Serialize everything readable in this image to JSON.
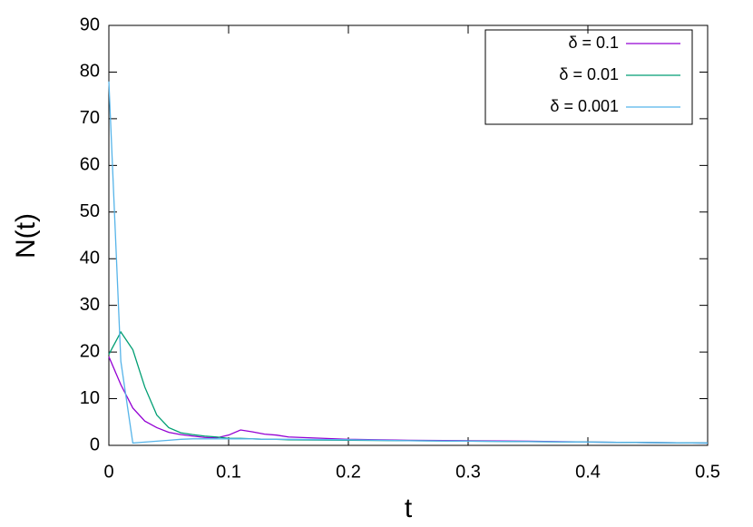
{
  "chart_data": {
    "type": "line",
    "x_label": "t",
    "y_label": "N(t)",
    "x": [
      0,
      0.01,
      0.02,
      0.03,
      0.04,
      0.05,
      0.06,
      0.07,
      0.08,
      0.09,
      0.1,
      0.11,
      0.12,
      0.13,
      0.14,
      0.15,
      0.2,
      0.25,
      0.3,
      0.35,
      0.4,
      0.45,
      0.5
    ],
    "series": [
      {
        "name": "δ = 0.1",
        "color": "#9400d3",
        "values": [
          19,
          13,
          8,
          5.2,
          3.8,
          2.8,
          2.3,
          2,
          1.7,
          1.6,
          2.2,
          3.3,
          2.9,
          2.4,
          2.2,
          1.8,
          1.3,
          1.1,
          1.0,
          0.9,
          0.7,
          0.6,
          0.5
        ]
      },
      {
        "name": "δ = 0.01",
        "color": "#009e73",
        "values": [
          19.5,
          24.3,
          20.5,
          12.5,
          6.5,
          3.8,
          2.7,
          2.3,
          2,
          1.8,
          1.5,
          1.5,
          1.4,
          1.3,
          1.3,
          1.2,
          1.1,
          1.0,
          0.9,
          0.8,
          0.7,
          0.6,
          0.5
        ]
      },
      {
        "name": "δ = 0.001",
        "color": "#56b4e9",
        "values": [
          78,
          18,
          0.5,
          0.7,
          0.9,
          1.1,
          1.3,
          1.4,
          1.4,
          1.4,
          1.4,
          1.4,
          1.4,
          1.3,
          1.3,
          1.3,
          1.2,
          1.0,
          0.9,
          0.8,
          0.7,
          0.6,
          0.5
        ]
      }
    ],
    "xlim": [
      0,
      0.5
    ],
    "xticks": [
      0,
      0.1,
      0.2,
      0.3,
      0.4,
      0.5
    ],
    "ylim": [
      0,
      90
    ],
    "yticks": [
      0,
      10,
      20,
      30,
      40,
      50,
      60,
      70,
      80,
      90
    ],
    "grid": false,
    "legend": "top-right"
  }
}
